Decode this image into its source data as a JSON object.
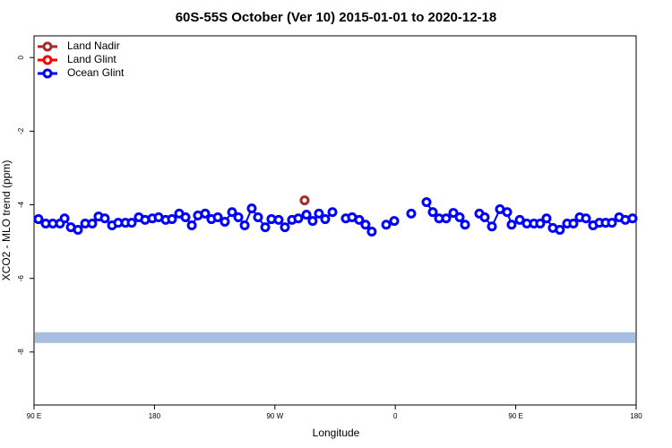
{
  "chart_data": {
    "type": "line",
    "title": "60S-55S October (Ver 10)   2015-01-01 to 2020-12-18",
    "x_label": "Longitude",
    "y_label": "XCO2 - MLO trend (ppm)",
    "xlim": [
      90,
      540
    ],
    "ylim": [
      -9.44,
      0.59
    ],
    "xticks": [
      {
        "value": 90,
        "label": "90 E"
      },
      {
        "value": 180,
        "label": "180"
      },
      {
        "value": 270,
        "label": "90 W"
      },
      {
        "value": 360,
        "label": "0"
      },
      {
        "value": 450,
        "label": "90 E"
      },
      {
        "value": 540,
        "label": "180"
      }
    ],
    "yticks": [
      0,
      -2,
      -4,
      -6,
      -8
    ],
    "legend": "top-left",
    "hline": {
      "y": -7.61,
      "color": "#a7bfdf"
    },
    "series": [
      {
        "name": "Land Nadir",
        "color": "#a52a2a",
        "x": [
          292.2
        ],
        "values": [
          -3.88
        ]
      },
      {
        "name": "Land Glint",
        "color": "#ff0000",
        "x": [],
        "values": []
      },
      {
        "name": "Ocean Glint",
        "color": "#0000ff",
        "x": [
          93.3,
          98.7,
          104,
          109.4,
          112.8,
          117.5,
          122.8,
          128.2,
          133.5,
          138.2,
          142.9,
          148.3,
          152.9,
          158.3,
          163,
          168.3,
          173,
          178.4,
          183.1,
          188.4,
          193.1,
          198.5,
          203.2,
          207.9,
          212.5,
          217.9,
          222.6,
          227.3,
          232.6,
          238,
          242.7,
          247.4,
          252.7,
          257.4,
          262.8,
          267.4,
          272.8,
          277.5,
          282.8,
          287.5,
          293.6,
          298.2,
          302.9,
          307.6,
          313,
          318,
          323,
          327.7,
          333,
          337.7,
          342.4,
          348,
          353.2,
          359.2,
          365,
          371.9,
          378,
          383.3,
          388,
          392.7,
          398,
          403.4,
          408.1,
          412.1,
          417.5,
          422.8,
          426.8,
          432.2,
          438.2,
          443.6,
          446.9,
          453,
          458.3,
          463.6,
          468.3,
          473,
          477.7,
          483,
          488.4,
          493.1,
          497.8,
          502.5,
          507.8,
          512.5,
          517.2,
          521.9,
          527.3,
          531.9,
          537.3
        ],
        "values": [
          -4.39,
          -4.51,
          -4.51,
          -4.51,
          -4.37,
          -4.61,
          -4.68,
          -4.51,
          -4.51,
          -4.32,
          -4.37,
          -4.56,
          -4.49,
          -4.49,
          -4.49,
          -4.34,
          -4.41,
          -4.37,
          -4.34,
          -4.41,
          -4.39,
          -4.24,
          -4.34,
          -4.56,
          -4.29,
          -4.24,
          -4.39,
          -4.34,
          -4.46,
          -4.2,
          -4.34,
          -4.56,
          -4.1,
          -4.34,
          -4.61,
          -4.39,
          -4.41,
          -4.61,
          -4.41,
          -4.37,
          -4.27,
          -4.44,
          -4.24,
          -4.39,
          -4.2,
          null,
          -4.37,
          -4.34,
          -4.41,
          -4.54,
          -4.73,
          null,
          -4.54,
          -4.44,
          null,
          -4.24,
          null,
          -3.93,
          -4.2,
          -4.37,
          -4.37,
          -4.22,
          -4.34,
          -4.54,
          null,
          -4.24,
          -4.34,
          -4.59,
          -4.12,
          -4.2,
          -4.54,
          -4.41,
          -4.51,
          -4.51,
          -4.51,
          -4.37,
          -4.63,
          -4.68,
          -4.51,
          -4.51,
          -4.34,
          -4.37,
          -4.56,
          -4.49,
          -4.49,
          -4.49,
          -4.34,
          -4.41,
          -4.37
        ]
      }
    ]
  }
}
